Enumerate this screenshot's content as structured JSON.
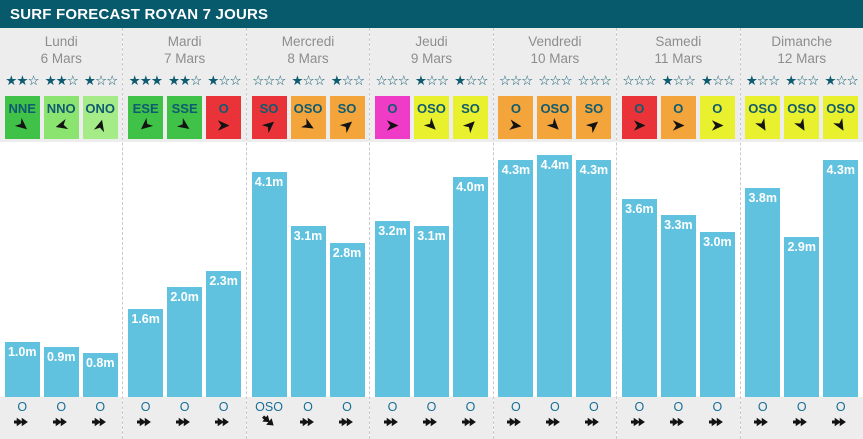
{
  "title": "SURF FORECAST ROYAN 7 JOURS",
  "colors": {
    "header_bg": "#075A6C",
    "strip_bg": "#EDEDED",
    "bar": "#60C2DF",
    "star": "#0F5B70",
    "wind_text": "#0F5B70",
    "swell_text": "#176F96",
    "arrow": "#131313",
    "day_text": "#8D8D8D",
    "wind": {
      "green": "#3FC247",
      "light_green": "#8CE470",
      "lighter_green": "#A5EC89",
      "red": "#EA3338",
      "orange": "#F3A43B",
      "yellow": "#E9F02E",
      "magenta": "#EF3BC6"
    }
  },
  "days": [
    {
      "name": "Lundi",
      "date": "6 Mars",
      "slots": [
        {
          "stars": 2,
          "wind": {
            "label": "NNE",
            "color": "green",
            "deg": 40
          },
          "wave": {
            "label": "1.0m",
            "value": 1.0
          },
          "swell": {
            "label": "O",
            "deg": 0
          }
        },
        {
          "stars": 2,
          "wind": {
            "label": "NNO",
            "color": "light_green",
            "deg": 165
          },
          "wave": {
            "label": "0.9m",
            "value": 0.9
          },
          "swell": {
            "label": "O",
            "deg": 0
          }
        },
        {
          "stars": 1,
          "wind": {
            "label": "ONO",
            "color": "lighter_green",
            "deg": -75
          },
          "wave": {
            "label": "0.8m",
            "value": 0.8
          },
          "swell": {
            "label": "O",
            "deg": 0
          }
        }
      ]
    },
    {
      "name": "Mardi",
      "date": "7 Mars",
      "slots": [
        {
          "stars": 3,
          "wind": {
            "label": "ESE",
            "color": "green",
            "deg": 140
          },
          "wave": {
            "label": "1.6m",
            "value": 1.6
          },
          "swell": {
            "label": "O",
            "deg": 0
          }
        },
        {
          "stars": 2,
          "wind": {
            "label": "SSE",
            "color": "green",
            "deg": 35
          },
          "wave": {
            "label": "2.0m",
            "value": 2.0
          },
          "swell": {
            "label": "O",
            "deg": 0
          }
        },
        {
          "stars": 1,
          "wind": {
            "label": "O",
            "color": "red",
            "deg": 0
          },
          "wave": {
            "label": "2.3m",
            "value": 2.3
          },
          "swell": {
            "label": "O",
            "deg": 0
          }
        }
      ]
    },
    {
      "name": "Mercredi",
      "date": "8 Mars",
      "slots": [
        {
          "stars": 0,
          "wind": {
            "label": "SO",
            "color": "red",
            "deg": -40
          },
          "wave": {
            "label": "4.1m",
            "value": 4.1
          },
          "swell": {
            "label": "OSO",
            "deg": 40
          }
        },
        {
          "stars": 1,
          "wind": {
            "label": "OSO",
            "color": "orange",
            "deg": 30
          },
          "wave": {
            "label": "3.1m",
            "value": 3.1
          },
          "swell": {
            "label": "O",
            "deg": 0
          }
        },
        {
          "stars": 1,
          "wind": {
            "label": "SO",
            "color": "orange",
            "deg": -40
          },
          "wave": {
            "label": "2.8m",
            "value": 2.8
          },
          "swell": {
            "label": "O",
            "deg": 0
          }
        }
      ]
    },
    {
      "name": "Jeudi",
      "date": "9 Mars",
      "slots": [
        {
          "stars": 0,
          "wind": {
            "label": "O",
            "color": "magenta",
            "deg": 0
          },
          "wave": {
            "label": "3.2m",
            "value": 3.2
          },
          "swell": {
            "label": "O",
            "deg": 0
          }
        },
        {
          "stars": 1,
          "wind": {
            "label": "OSO",
            "color": "yellow",
            "deg": 45
          },
          "wave": {
            "label": "3.1m",
            "value": 3.1
          },
          "swell": {
            "label": "O",
            "deg": 0
          }
        },
        {
          "stars": 1,
          "wind": {
            "label": "SO",
            "color": "yellow",
            "deg": -45
          },
          "wave": {
            "label": "4.0m",
            "value": 4.0
          },
          "swell": {
            "label": "O",
            "deg": 0
          }
        }
      ]
    },
    {
      "name": "Vendredi",
      "date": "10 Mars",
      "slots": [
        {
          "stars": 0,
          "wind": {
            "label": "O",
            "color": "orange",
            "deg": 8
          },
          "wave": {
            "label": "4.3m",
            "value": 4.3
          },
          "swell": {
            "label": "O",
            "deg": 0
          }
        },
        {
          "stars": 0,
          "wind": {
            "label": "OSO",
            "color": "orange",
            "deg": 45
          },
          "wave": {
            "label": "4.4m",
            "value": 4.4
          },
          "swell": {
            "label": "O",
            "deg": 0
          }
        },
        {
          "stars": 0,
          "wind": {
            "label": "SO",
            "color": "orange",
            "deg": -40
          },
          "wave": {
            "label": "4.3m",
            "value": 4.3
          },
          "swell": {
            "label": "O",
            "deg": 0
          }
        }
      ]
    },
    {
      "name": "Samedi",
      "date": "11 Mars",
      "slots": [
        {
          "stars": 0,
          "wind": {
            "label": "O",
            "color": "red",
            "deg": 0
          },
          "wave": {
            "label": "3.6m",
            "value": 3.6
          },
          "swell": {
            "label": "O",
            "deg": 0
          }
        },
        {
          "stars": 1,
          "wind": {
            "label": "O",
            "color": "orange",
            "deg": 0
          },
          "wave": {
            "label": "3.3m",
            "value": 3.3
          },
          "swell": {
            "label": "O",
            "deg": 0
          }
        },
        {
          "stars": 1,
          "wind": {
            "label": "O",
            "color": "yellow",
            "deg": 0
          },
          "wave": {
            "label": "3.0m",
            "value": 3.0
          },
          "swell": {
            "label": "O",
            "deg": 0
          }
        }
      ]
    },
    {
      "name": "Dimanche",
      "date": "12 Mars",
      "slots": [
        {
          "stars": 1,
          "wind": {
            "label": "OSO",
            "color": "yellow",
            "deg": 60
          },
          "wave": {
            "label": "3.8m",
            "value": 3.8
          },
          "swell": {
            "label": "O",
            "deg": 0
          }
        },
        {
          "stars": 1,
          "wind": {
            "label": "OSO",
            "color": "yellow",
            "deg": 60
          },
          "wave": {
            "label": "2.9m",
            "value": 2.9
          },
          "swell": {
            "label": "O",
            "deg": 0
          }
        },
        {
          "stars": 1,
          "wind": {
            "label": "OSO",
            "color": "yellow",
            "deg": 60
          },
          "wave": {
            "label": "4.3m",
            "value": 4.3
          },
          "swell": {
            "label": "O",
            "deg": 0
          }
        }
      ]
    }
  ],
  "chart_data": {
    "type": "bar",
    "title": "SURF FORECAST ROYAN 7 JOURS",
    "categories": [
      "Lundi 6 Mars",
      "Mardi 7 Mars",
      "Mercredi 8 Mars",
      "Jeudi 9 Mars",
      "Vendredi 10 Mars",
      "Samedi 11 Mars",
      "Dimanche 12 Mars"
    ],
    "series": [
      {
        "name": "wave_height_m",
        "values_per_day": [
          [
            1.0,
            0.9,
            0.8
          ],
          [
            1.6,
            2.0,
            2.3
          ],
          [
            4.1,
            3.1,
            2.8
          ],
          [
            3.2,
            3.1,
            4.0
          ],
          [
            4.3,
            4.4,
            4.3
          ],
          [
            3.6,
            3.3,
            3.0
          ],
          [
            3.8,
            2.9,
            4.3
          ]
        ]
      }
    ],
    "star_ratings_per_day": [
      [
        2,
        2,
        1
      ],
      [
        3,
        2,
        1
      ],
      [
        0,
        1,
        1
      ],
      [
        0,
        1,
        1
      ],
      [
        0,
        0,
        0
      ],
      [
        0,
        1,
        1
      ],
      [
        1,
        1,
        1
      ]
    ],
    "stars_max": 3,
    "unit": "m",
    "ylim": [
      0,
      4.6
    ],
    "bar_color": "#60C2DF",
    "grid": false,
    "legend": "none"
  }
}
